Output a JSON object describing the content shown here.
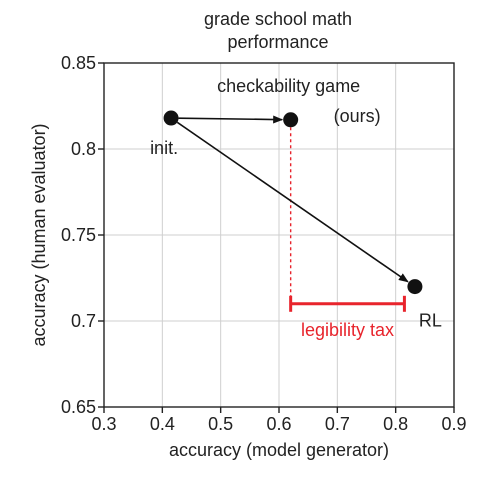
{
  "chart_data": {
    "type": "scatter",
    "title_lines": [
      "grade school math",
      "performance"
    ],
    "xlabel": "accuracy (model generator)",
    "ylabel": "accuracy (human evaluator)",
    "xlim": [
      0.3,
      0.9
    ],
    "ylim": [
      0.65,
      0.85
    ],
    "x_ticks": [
      0.3,
      0.4,
      0.5,
      0.6,
      0.7,
      0.8,
      0.9
    ],
    "y_ticks": [
      0.65,
      0.7,
      0.75,
      0.8,
      0.85
    ],
    "x_tick_labels": [
      "0.3",
      "0.4",
      "0.5",
      "0.6",
      "0.7",
      "0.8",
      "0.9"
    ],
    "y_tick_labels": [
      "0.65",
      "0.7",
      "0.75",
      "0.8",
      "0.85"
    ],
    "grid": true,
    "points": [
      {
        "id": "init",
        "label": "init.",
        "x": 0.415,
        "y": 0.818
      },
      {
        "id": "checkability",
        "label_lines": [
          "checkability game",
          "(ours)"
        ],
        "x": 0.62,
        "y": 0.817
      },
      {
        "id": "rl",
        "label": "RL",
        "x": 0.833,
        "y": 0.72
      }
    ],
    "arrows": [
      {
        "from": "init",
        "to": "checkability"
      },
      {
        "from": "init",
        "to": "rl"
      }
    ],
    "legibility_tax": {
      "label": "legibility tax",
      "x_start": 0.62,
      "x_end": 0.815,
      "y": 0.71,
      "color": "#e8242c"
    },
    "colors": {
      "point": "#111111",
      "arrow": "#111111",
      "annotation": "#e8242c"
    }
  }
}
